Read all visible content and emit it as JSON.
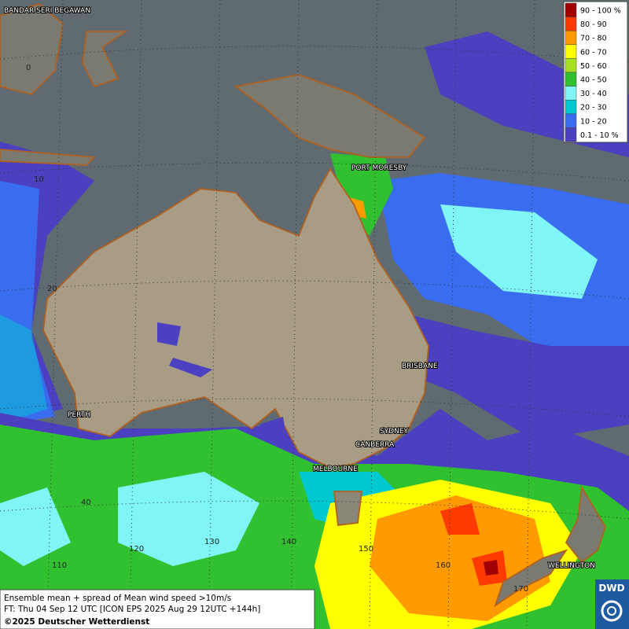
{
  "map": {
    "legend": [
      {
        "label": "90 - 100 %",
        "color": "#a00000"
      },
      {
        "label": "80 - 90",
        "color": "#ff3a00"
      },
      {
        "label": "70 - 80",
        "color": "#ff9a00"
      },
      {
        "label": "60 - 70",
        "color": "#ffff00"
      },
      {
        "label": "50 - 60",
        "color": "#a6e020"
      },
      {
        "label": "40 - 50",
        "color": "#30c030"
      },
      {
        "label": "30 - 40",
        "color": "#80f5f5"
      },
      {
        "label": "20 - 30",
        "color": "#00c8d0"
      },
      {
        "label": "10 - 20",
        "color": "#3a6cf0"
      },
      {
        "label": "0.1 - 10 %",
        "color": "#4a40c0"
      }
    ],
    "cities": [
      "BANDAR SERI BEGAWAN",
      "PORT MORESBY",
      "BRISBANE",
      "PERTH",
      "SYDNEY",
      "CANBERRA",
      "MELBOURNE",
      "WELLINGTON"
    ],
    "latitudes": [
      "0",
      "10",
      "20",
      "40"
    ],
    "longitudes": [
      "110",
      "120",
      "130",
      "140",
      "150",
      "160",
      "170"
    ],
    "footer": [
      "Ensemble mean + spread of Mean wind speed >10m/s",
      "FT: Thu 04 Sep 12 UTC [ICON EPS 2025 Aug 29 12UTC +144h]",
      "©2025 Deutscher Wetterdienst"
    ],
    "logo": "DWD"
  }
}
